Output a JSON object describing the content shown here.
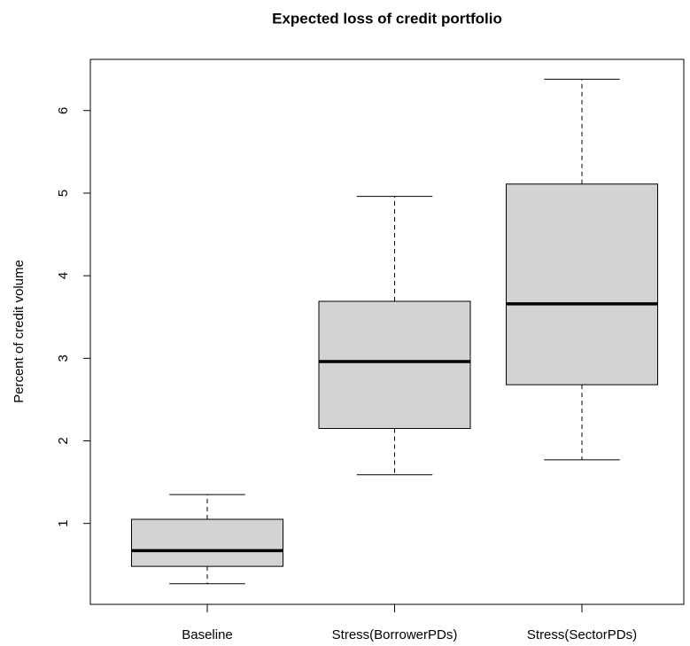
{
  "chart_data": {
    "type": "box",
    "title": "Expected loss of credit portfolio",
    "y_label": "Percent of credit volume",
    "categories": [
      "Baseline",
      "Stress(BorrowerPDs)",
      "Stress(SectorPDs)"
    ],
    "whisker_low": [
      0.27,
      1.59,
      1.77
    ],
    "q1": [
      0.48,
      2.15,
      2.68
    ],
    "median": [
      0.67,
      2.96,
      3.66
    ],
    "q3": [
      1.05,
      3.69,
      5.11
    ],
    "whisker_high": [
      1.35,
      4.96,
      6.38
    ],
    "color": "#d3d3d3",
    "ylim": [
      0.02,
      6.62
    ],
    "yticks": [
      1,
      2,
      3,
      4,
      5,
      6
    ]
  }
}
